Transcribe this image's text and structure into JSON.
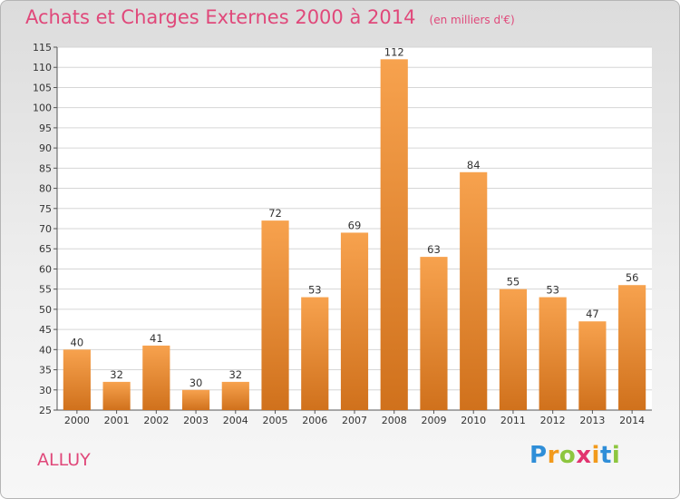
{
  "chart_data": {
    "type": "bar",
    "title": "Achats et Charges Externes 2000 à 2014",
    "subtitle": "(en milliers d'€)",
    "place": "ALLUY",
    "categories": [
      "2000",
      "2001",
      "2002",
      "2003",
      "2004",
      "2005",
      "2006",
      "2007",
      "2008",
      "2009",
      "2010",
      "2011",
      "2012",
      "2013",
      "2014"
    ],
    "values": [
      40,
      32,
      41,
      30,
      32,
      72,
      53,
      69,
      112,
      63,
      84,
      55,
      53,
      47,
      56
    ],
    "ylim": [
      25,
      115
    ],
    "yticks": [
      25,
      30,
      35,
      40,
      45,
      50,
      55,
      60,
      65,
      70,
      75,
      80,
      85,
      90,
      95,
      100,
      105,
      110,
      115
    ],
    "grid": true,
    "bar_color_top": "#f7a24e",
    "bar_color_bottom": "#d0711c",
    "title_color": "#e0487a"
  },
  "logo": {
    "letters": [
      "P",
      "r",
      "o",
      "x",
      "i",
      "t",
      "i"
    ],
    "colors": [
      "#2f8ed8",
      "#f29a1c",
      "#8dc63f",
      "#e2336f",
      "#f29a1c",
      "#2f8ed8",
      "#8dc63f"
    ]
  }
}
